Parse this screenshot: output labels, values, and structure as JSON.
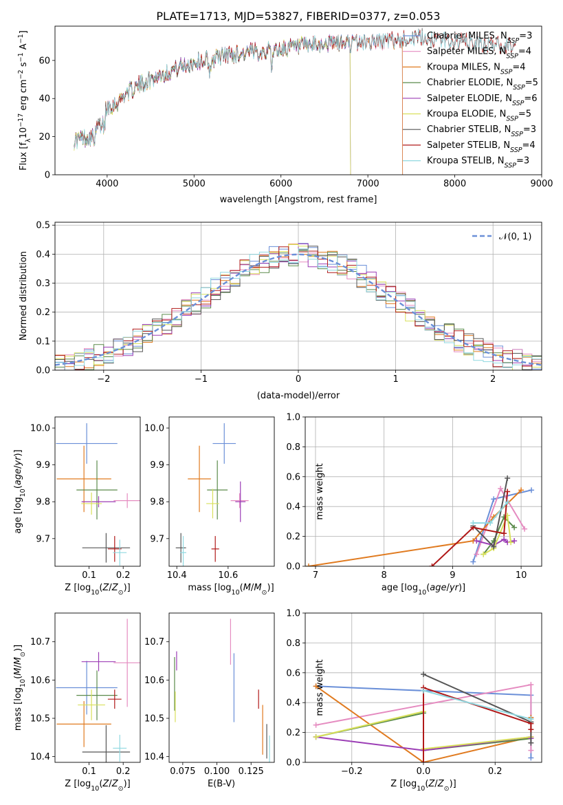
{
  "figure": {
    "title": "PLATE=1713, MJD=53827, FIBERID=0377, z=0.053"
  },
  "model_colors": [
    "#6a8fd8",
    "#e58bc0",
    "#e07a1f",
    "#5a8a4a",
    "#9b3db5",
    "#d8e05a",
    "#555555",
    "#b01818",
    "#8fd8e0"
  ],
  "chart_data": [
    {
      "id": "spectrum",
      "type": "line",
      "xlabel": "wavelength [Angstrom, rest frame]",
      "ylabel": "Flux [f_λ 10^-17 erg cm^-2 s^-1 A^-1]",
      "xlim": [
        3400,
        9000
      ],
      "ylim": [
        0,
        78
      ],
      "xticks": [
        4000,
        5000,
        6000,
        7000,
        8000,
        9000
      ],
      "yticks": [
        0,
        20,
        40,
        60
      ],
      "legend_position": "top-right",
      "grid": false,
      "continuum": {
        "x": [
          3620,
          3700,
          3800,
          3850,
          3900,
          3950,
          4000,
          4100,
          4200,
          4300,
          4400,
          4500,
          4600,
          4800,
          5000,
          5200,
          5400,
          5600,
          5800,
          6000,
          6200,
          6400,
          6600,
          6800,
          7000,
          7200,
          7400,
          7600,
          7800,
          8000,
          8200,
          8400,
          8600,
          8700
        ],
        "y": [
          18,
          19,
          20,
          19,
          26,
          32,
          36,
          37,
          42,
          45,
          48,
          50,
          52,
          56,
          59,
          61,
          63,
          64,
          65,
          66,
          67,
          68,
          69,
          69,
          70,
          70,
          71,
          72,
          71,
          70,
          69,
          68,
          68,
          67
        ]
      },
      "series": [
        {
          "name": "Chabrier MILES, N_SSP=3",
          "label_main": "Chabrier MILES, N",
          "label_sub": "SSP",
          "label_tail": "=3",
          "xmax": 7400
        },
        {
          "name": "Salpeter MILES, N_SSP=4",
          "label_main": "Salpeter MILES, N",
          "label_sub": "SSP",
          "label_tail": "=4",
          "xmax": 7400
        },
        {
          "name": "Kroupa MILES, N_SSP=4",
          "label_main": "Kroupa MILES, N",
          "label_sub": "SSP",
          "label_tail": "=4",
          "xmax": 7400
        },
        {
          "name": "Chabrier ELODIE, N_SSP=5",
          "label_main": "Chabrier ELODIE, N",
          "label_sub": "SSP",
          "label_tail": "=5",
          "xmax": 6800
        },
        {
          "name": "Salpeter ELODIE, N_SSP=6",
          "label_main": "Salpeter ELODIE, N",
          "label_sub": "SSP",
          "label_tail": "=6",
          "xmax": 6800
        },
        {
          "name": "Kroupa ELODIE, N_SSP=5",
          "label_main": "Kroupa ELODIE, N",
          "label_sub": "SSP",
          "label_tail": "=5",
          "xmax": 6800
        },
        {
          "name": "Chabrier STELIB, N_SSP=3",
          "label_main": "Chabrier STELIB, N",
          "label_sub": "SSP",
          "label_tail": "=3",
          "xmax": 8700
        },
        {
          "name": "Salpeter STELIB, N_SSP=4",
          "label_main": "Salpeter STELIB, N",
          "label_sub": "SSP",
          "label_tail": "=4",
          "xmax": 8700
        },
        {
          "name": "Kroupa STELIB, N_SSP=3",
          "label_main": "Kroupa STELIB, N",
          "label_sub": "SSP",
          "label_tail": "=3",
          "xmax": 8700
        }
      ]
    },
    {
      "id": "residuals",
      "type": "line",
      "xlabel": "(data-model)/error",
      "ylabel": "Normed distribution",
      "xlim": [
        -2.5,
        2.5
      ],
      "ylim": [
        0,
        0.51
      ],
      "xticks": [
        -2,
        -1,
        0,
        1,
        2
      ],
      "yticks": [
        0.0,
        0.1,
        0.2,
        0.3,
        0.4,
        0.5
      ],
      "grid": true,
      "legend_position": "top-right",
      "reference_label": "𝒩(0, 1)",
      "bin_width": 0.1
    },
    {
      "id": "age_vs_Z",
      "type": "scatter",
      "xlabel": "Z [log10(Z/Z⊙)]",
      "ylabel": "age [log10(age/yr)]",
      "xlim": [
        0.0,
        0.25
      ],
      "ylim": [
        9.625,
        10.03
      ],
      "xticks": [
        0.1,
        0.2
      ],
      "yticks": [
        9.7,
        9.8,
        9.9,
        10.0
      ],
      "points": [
        {
          "x": 0.093,
          "y": 9.958,
          "dx": 0.09,
          "dy": 0.055
        },
        {
          "x": 0.212,
          "y": 9.803,
          "dx": 0.04,
          "dy": 0.02
        },
        {
          "x": 0.085,
          "y": 9.862,
          "dx": 0.08,
          "dy": 0.09
        },
        {
          "x": 0.123,
          "y": 9.832,
          "dx": 0.06,
          "dy": 0.08
        },
        {
          "x": 0.128,
          "y": 9.8,
          "dx": 0.05,
          "dy": 0.015
        },
        {
          "x": 0.107,
          "y": 9.795,
          "dx": 0.03,
          "dy": 0.03
        },
        {
          "x": 0.15,
          "y": 9.675,
          "dx": 0.07,
          "dy": 0.04
        },
        {
          "x": 0.175,
          "y": 9.672,
          "dx": 0.02,
          "dy": 0.035
        },
        {
          "x": 0.19,
          "y": 9.662,
          "dx": 0.02,
          "dy": 0.035
        }
      ]
    },
    {
      "id": "age_vs_mass",
      "type": "scatter",
      "xlabel": "mass [log10(M/M⊙)]",
      "ylabel": "",
      "xlim": [
        10.37,
        10.78
      ],
      "ylim": [
        9.625,
        10.03
      ],
      "xticks": [
        10.4,
        10.6
      ],
      "yticks": [
        9.7,
        9.8,
        9.9,
        10.0
      ],
      "points": [
        {
          "x": 10.585,
          "y": 9.958,
          "dx": 0.045,
          "dy": 0.055
        },
        {
          "x": 10.645,
          "y": 9.803,
          "dx": 0.035,
          "dy": 0.02
        },
        {
          "x": 10.488,
          "y": 9.862,
          "dx": 0.045,
          "dy": 0.09
        },
        {
          "x": 10.558,
          "y": 9.832,
          "dx": 0.04,
          "dy": 0.08
        },
        {
          "x": 10.648,
          "y": 9.8,
          "dx": 0.02,
          "dy": 0.055
        },
        {
          "x": 10.54,
          "y": 9.795,
          "dx": 0.025,
          "dy": 0.04
        },
        {
          "x": 10.416,
          "y": 9.675,
          "dx": 0.02,
          "dy": 0.04
        },
        {
          "x": 10.55,
          "y": 9.672,
          "dx": 0.015,
          "dy": 0.035
        },
        {
          "x": 10.425,
          "y": 9.662,
          "dx": 0.012,
          "dy": 0.045
        }
      ]
    },
    {
      "id": "mass_weight_vs_age",
      "type": "line",
      "xlabel": "age [log10(age/yr)]",
      "ylabel": "mass weight",
      "xlim": [
        6.85,
        10.3
      ],
      "ylim": [
        0.0,
        1.0
      ],
      "xticks": [
        7,
        8,
        9,
        10
      ],
      "yticks": [
        0.0,
        0.2,
        0.4,
        0.6,
        0.8,
        1.0
      ],
      "grid": true,
      "series": [
        {
          "x": [
            9.3,
            9.6,
            10.15
          ],
          "y": [
            0.03,
            0.45,
            0.51
          ]
        },
        {
          "x": [
            9.35,
            9.7,
            10.05
          ],
          "y": [
            0.08,
            0.52,
            0.25
          ]
        },
        {
          "x": [
            6.9,
            9.3,
            9.6,
            10.0
          ],
          "y": [
            0.0,
            0.17,
            0.33,
            0.51
          ]
        },
        {
          "x": [
            9.45,
            9.6,
            9.75,
            9.9
          ],
          "y": [
            0.08,
            0.17,
            0.33,
            0.26
          ]
        },
        {
          "x": [
            9.35,
            9.6,
            9.75,
            9.8,
            9.9
          ],
          "y": [
            0.17,
            0.14,
            0.18,
            0.16,
            0.17
          ]
        },
        {
          "x": [
            9.45,
            9.6,
            9.8,
            9.85
          ],
          "y": [
            0.08,
            0.12,
            0.34,
            0.16
          ]
        },
        {
          "x": [
            9.3,
            9.6,
            9.8
          ],
          "y": [
            0.27,
            0.13,
            0.59
          ]
        },
        {
          "x": [
            8.7,
            9.3,
            9.75,
            9.8
          ],
          "y": [
            0.0,
            0.26,
            0.22,
            0.5
          ]
        },
        {
          "x": [
            9.3,
            9.55,
            9.8
          ],
          "y": [
            0.29,
            0.29,
            0.43
          ]
        }
      ]
    },
    {
      "id": "mass_vs_Z",
      "type": "scatter",
      "xlabel": "Z [log10(Z/Z⊙)]",
      "ylabel": "mass [log10(M/M⊙)]",
      "xlim": [
        0.0,
        0.25
      ],
      "ylim": [
        10.385,
        10.775
      ],
      "xticks": [
        0.1,
        0.2
      ],
      "yticks": [
        10.4,
        10.5,
        10.6,
        10.7
      ],
      "points": [
        {
          "x": 0.093,
          "y": 10.58,
          "dx": 0.09,
          "dy": 0.07
        },
        {
          "x": 0.212,
          "y": 10.645,
          "dx": 0.04,
          "dy": 0.115
        },
        {
          "x": 0.085,
          "y": 10.485,
          "dx": 0.08,
          "dy": 0.06
        },
        {
          "x": 0.123,
          "y": 10.56,
          "dx": 0.06,
          "dy": 0.065
        },
        {
          "x": 0.128,
          "y": 10.648,
          "dx": 0.05,
          "dy": 0.025
        },
        {
          "x": 0.107,
          "y": 10.535,
          "dx": 0.04,
          "dy": 0.04
        },
        {
          "x": 0.15,
          "y": 10.412,
          "dx": 0.07,
          "dy": 0.07
        },
        {
          "x": 0.175,
          "y": 10.55,
          "dx": 0.02,
          "dy": 0.025
        },
        {
          "x": 0.19,
          "y": 10.422,
          "dx": 0.02,
          "dy": 0.035
        }
      ]
    },
    {
      "id": "mass_vs_EBV",
      "type": "scatter",
      "xlabel": "E(B-V)",
      "ylabel": "",
      "xlim": [
        0.065,
        0.142
      ],
      "ylim": [
        10.385,
        10.775
      ],
      "xticks": [
        0.075,
        0.1,
        0.125
      ],
      "xtick_labels": [
        "0.075",
        "0.100",
        "0.125"
      ],
      "yticks": [
        10.4,
        10.5,
        10.6,
        10.7
      ],
      "points": [
        {
          "x": 0.1125,
          "y": 10.58,
          "dx": 0,
          "dy": 0.09
        },
        {
          "x": 0.11,
          "y": 10.7,
          "dx": 0,
          "dy": 0.06
        },
        {
          "x": 0.1335,
          "y": 10.47,
          "dx": 0,
          "dy": 0.065
        },
        {
          "x": 0.069,
          "y": 10.59,
          "dx": 0,
          "dy": 0.07
        },
        {
          "x": 0.0705,
          "y": 10.65,
          "dx": 0,
          "dy": 0.025
        },
        {
          "x": 0.0695,
          "y": 10.53,
          "dx": 0,
          "dy": 0.04
        },
        {
          "x": 0.1365,
          "y": 10.44,
          "dx": 0,
          "dy": 0.045
        },
        {
          "x": 0.1305,
          "y": 10.55,
          "dx": 0,
          "dy": 0.025
        },
        {
          "x": 0.1385,
          "y": 10.42,
          "dx": 0,
          "dy": 0.035
        }
      ]
    },
    {
      "id": "mass_weight_vs_Z",
      "type": "line",
      "xlabel": "Z [log10(Z/Z⊙)]",
      "ylabel": "mass weight",
      "xlim": [
        -0.33,
        0.33
      ],
      "ylim": [
        0.0,
        1.0
      ],
      "xticks": [
        -0.2,
        0.0,
        0.2
      ],
      "yticks": [
        0.0,
        0.2,
        0.4,
        0.6,
        0.8,
        1.0
      ],
      "grid": true,
      "series": [
        {
          "x": [
            -0.3,
            0.3,
            0.3
          ],
          "y": [
            0.51,
            0.45,
            0.03
          ]
        },
        {
          "x": [
            -0.3,
            0.3,
            0.3
          ],
          "y": [
            0.25,
            0.52,
            0.08
          ]
        },
        {
          "x": [
            -0.3,
            0.0,
            0.3,
            0.3
          ],
          "y": [
            0.51,
            0.0,
            0.17,
            0.3
          ]
        },
        {
          "x": [
            -0.3,
            0.0,
            0.0,
            0.3
          ],
          "y": [
            0.17,
            0.33,
            0.08,
            0.16
          ]
        },
        {
          "x": [
            -0.3,
            0.0,
            0.3,
            0.3
          ],
          "y": [
            0.17,
            0.08,
            0.17,
            0.16
          ]
        },
        {
          "x": [
            -0.3,
            0.0,
            0.0,
            0.3
          ],
          "y": [
            0.17,
            0.34,
            0.09,
            0.17
          ]
        },
        {
          "x": [
            0.0,
            0.3,
            0.3
          ],
          "y": [
            0.59,
            0.27,
            0.13
          ]
        },
        {
          "x": [
            0.0,
            0.0,
            0.3,
            0.3
          ],
          "y": [
            0.0,
            0.5,
            0.26,
            0.22
          ]
        },
        {
          "x": [
            0.0,
            0.3,
            0.3
          ],
          "y": [
            0.48,
            0.29,
            0.29
          ]
        }
      ]
    }
  ]
}
